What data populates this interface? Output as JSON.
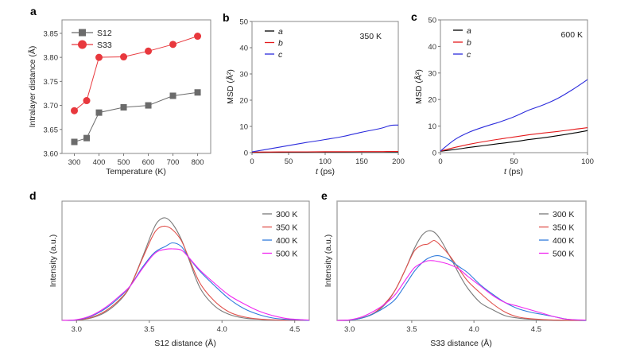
{
  "chart_data": [
    {
      "panel": "a",
      "type": "line",
      "title": "",
      "xlabel": "Temperature (K)",
      "ylabel": "Intralayer distance (Å)",
      "xlim": [
        250,
        853
      ],
      "ylim": [
        3.6,
        3.878
      ],
      "xticks": [
        300,
        400,
        500,
        600,
        700,
        800
      ],
      "yticks": [
        3.6,
        3.65,
        3.7,
        3.75,
        3.8,
        3.85
      ],
      "ytick_labels": [
        "3.60",
        "3.65",
        "3.70",
        "3.75",
        "3.80",
        "3.85"
      ],
      "x": [
        300,
        350,
        400,
        500,
        600,
        700,
        800
      ],
      "legend_position": "top-left",
      "series": [
        {
          "name": "S12",
          "marker": "square",
          "color": "#6b6b6b",
          "values": [
            3.624,
            3.632,
            3.685,
            3.696,
            3.7,
            3.72,
            3.727
          ]
        },
        {
          "name": "S33",
          "marker": "circle",
          "color": "#e8383d",
          "values": [
            3.689,
            3.71,
            3.8,
            3.801,
            3.813,
            3.827,
            3.844
          ]
        }
      ]
    },
    {
      "panel": "b",
      "type": "line",
      "annotation": "350 K",
      "xlabel_italic": "t",
      "xlabel_rest": " (ps)",
      "ylabel": "MSD (Å²)",
      "xlim": [
        0,
        200
      ],
      "ylim": [
        0,
        50
      ],
      "xticks": [
        0,
        50,
        100,
        150,
        200
      ],
      "yticks": [
        0,
        10,
        20,
        30,
        40,
        50
      ],
      "legend_position": "top-left",
      "x": [
        0,
        25,
        50,
        75,
        100,
        125,
        150,
        175,
        190,
        200
      ],
      "series": [
        {
          "name": "a",
          "color": "#000000",
          "values": [
            0.1,
            0.15,
            0.2,
            0.2,
            0.25,
            0.25,
            0.3,
            0.3,
            0.3,
            0.3
          ]
        },
        {
          "name": "b",
          "color": "#e41a1c",
          "values": [
            0.2,
            0.25,
            0.3,
            0.3,
            0.35,
            0.35,
            0.4,
            0.4,
            0.45,
            0.45
          ]
        },
        {
          "name": "c",
          "color": "#2b2bdc",
          "values": [
            0.3,
            1.5,
            2.7,
            3.9,
            5.0,
            6.2,
            7.8,
            9.2,
            10.4,
            10.5
          ]
        }
      ]
    },
    {
      "panel": "c",
      "type": "line",
      "annotation": "600 K",
      "xlabel_italic": "t",
      "xlabel_rest": " (ps)",
      "ylabel": "MSD (Å²)",
      "xlim": [
        0,
        100
      ],
      "ylim": [
        0,
        50
      ],
      "xticks": [
        0,
        50,
        100
      ],
      "yticks": [
        0,
        10,
        20,
        30,
        40,
        50
      ],
      "legend_position": "top-left",
      "x": [
        0,
        10,
        20,
        30,
        40,
        50,
        60,
        70,
        80,
        90,
        100
      ],
      "series": [
        {
          "name": "a",
          "color": "#000000",
          "values": [
            0.5,
            1.2,
            2.0,
            2.7,
            3.4,
            4.1,
            4.9,
            5.6,
            6.4,
            7.3,
            8.3
          ]
        },
        {
          "name": "b",
          "color": "#e41a1c",
          "values": [
            0.6,
            2.0,
            3.2,
            4.2,
            5.1,
            5.9,
            6.7,
            7.4,
            8.0,
            8.7,
            9.4
          ]
        },
        {
          "name": "c",
          "color": "#2b2bdc",
          "values": [
            0.6,
            5.0,
            7.8,
            9.8,
            11.5,
            13.5,
            16.0,
            18.0,
            20.5,
            23.8,
            27.5
          ]
        }
      ]
    },
    {
      "panel": "d",
      "type": "line",
      "xlabel": "S12 distance (Å)",
      "ylabel": "Intensity (a.u.)",
      "xlim": [
        2.9,
        4.6
      ],
      "ylim": [
        0,
        1
      ],
      "xticks": [
        3.0,
        3.5,
        4.0,
        4.5
      ],
      "xtick_labels": [
        "3.0",
        "3.5",
        "4.0",
        "4.5"
      ],
      "legend_position": "top-right",
      "x": [
        2.9,
        3.0,
        3.1,
        3.2,
        3.3,
        3.37,
        3.45,
        3.52,
        3.56,
        3.61,
        3.66,
        3.72,
        3.77,
        3.85,
        3.95,
        4.05,
        4.15,
        4.25,
        4.35,
        4.45,
        4.6
      ],
      "series": [
        {
          "name": "300 K",
          "color": "#7a7a7a",
          "values": [
            0,
            0.002,
            0.02,
            0.07,
            0.17,
            0.29,
            0.52,
            0.74,
            0.83,
            0.86,
            0.81,
            0.68,
            0.52,
            0.27,
            0.12,
            0.05,
            0.02,
            0.01,
            0.004,
            0.002,
            0
          ]
        },
        {
          "name": "350 K",
          "color": "#e0504b",
          "values": [
            0,
            0.002,
            0.025,
            0.08,
            0.18,
            0.29,
            0.51,
            0.7,
            0.77,
            0.79,
            0.76,
            0.67,
            0.53,
            0.31,
            0.16,
            0.07,
            0.03,
            0.012,
            0.005,
            0.002,
            0
          ]
        },
        {
          "name": "400 K",
          "color": "#2f7bdc",
          "values": [
            0,
            0.004,
            0.035,
            0.1,
            0.2,
            0.29,
            0.44,
            0.55,
            0.59,
            0.62,
            0.65,
            0.62,
            0.53,
            0.41,
            0.29,
            0.18,
            0.1,
            0.05,
            0.02,
            0.008,
            0
          ]
        },
        {
          "name": "500 K",
          "color": "#f026f0",
          "values": [
            0,
            0.006,
            0.04,
            0.11,
            0.21,
            0.29,
            0.43,
            0.54,
            0.58,
            0.596,
            0.6,
            0.59,
            0.53,
            0.42,
            0.31,
            0.21,
            0.14,
            0.08,
            0.04,
            0.015,
            0.003
          ]
        }
      ]
    },
    {
      "panel": "e",
      "type": "line",
      "xlabel": "S33 distance (Å)",
      "ylabel": "Intensity (a.u.)",
      "xlim": [
        2.9,
        4.9
      ],
      "ylim": [
        0,
        1
      ],
      "xticks": [
        3.0,
        3.5,
        4.0,
        4.5
      ],
      "xtick_labels": [
        "3.0",
        "3.5",
        "4.0",
        "4.5"
      ],
      "legend_position": "top-right",
      "x": [
        2.9,
        3.0,
        3.1,
        3.2,
        3.3,
        3.37,
        3.45,
        3.52,
        3.58,
        3.63,
        3.68,
        3.73,
        3.8,
        3.88,
        3.95,
        4.05,
        4.15,
        4.25,
        4.35,
        4.45,
        4.55,
        4.65,
        4.75,
        4.9
      ],
      "series": [
        {
          "name": "300 K",
          "color": "#7a7a7a",
          "values": [
            0,
            0.003,
            0.02,
            0.06,
            0.15,
            0.26,
            0.43,
            0.6,
            0.71,
            0.75,
            0.74,
            0.68,
            0.55,
            0.39,
            0.27,
            0.15,
            0.09,
            0.04,
            0.02,
            0.01,
            0.005,
            0.002,
            0.001,
            0
          ]
        },
        {
          "name": "350 K",
          "color": "#e0504b",
          "values": [
            0,
            0.003,
            0.022,
            0.065,
            0.16,
            0.26,
            0.43,
            0.58,
            0.63,
            0.64,
            0.67,
            0.63,
            0.55,
            0.43,
            0.33,
            0.23,
            0.14,
            0.07,
            0.03,
            0.015,
            0.007,
            0.003,
            0.001,
            0
          ]
        },
        {
          "name": "400 K",
          "color": "#2f7bdc",
          "values": [
            0,
            0.003,
            0.02,
            0.06,
            0.12,
            0.18,
            0.3,
            0.41,
            0.48,
            0.52,
            0.54,
            0.54,
            0.51,
            0.45,
            0.4,
            0.3,
            0.22,
            0.15,
            0.1,
            0.07,
            0.05,
            0.03,
            0.01,
            0
          ]
        },
        {
          "name": "500 K",
          "color": "#f026f0",
          "values": [
            0,
            0.005,
            0.03,
            0.08,
            0.15,
            0.22,
            0.34,
            0.44,
            0.48,
            0.5,
            0.5,
            0.49,
            0.47,
            0.43,
            0.37,
            0.29,
            0.21,
            0.15,
            0.12,
            0.09,
            0.06,
            0.03,
            0.01,
            0.003
          ]
        }
      ]
    }
  ]
}
